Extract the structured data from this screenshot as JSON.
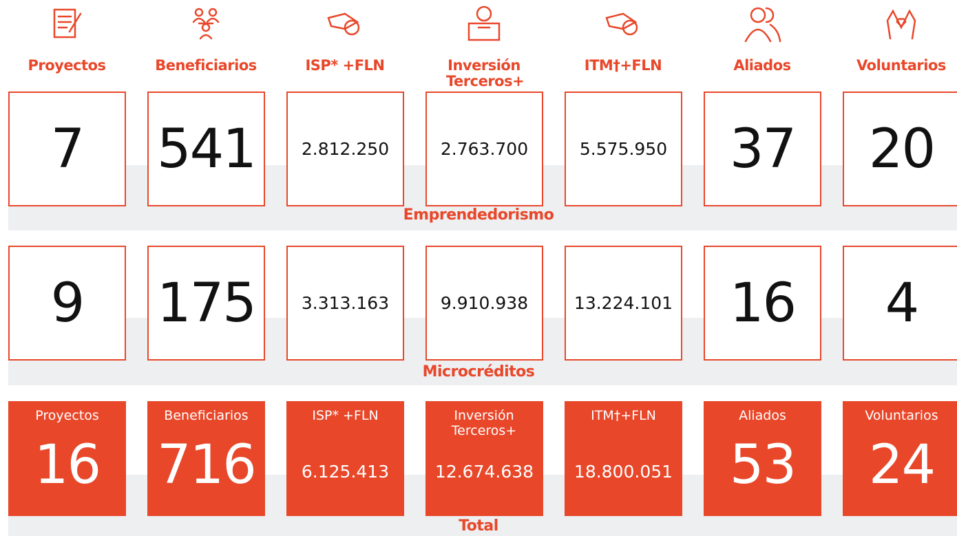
{
  "columns": [
    {
      "label": "Proyectos"
    },
    {
      "label": "Beneficiarios"
    },
    {
      "label": "ISP* +FLN"
    },
    {
      "label": "Inversión Terceros+"
    },
    {
      "label": "ITM†+FLN"
    },
    {
      "label": "Aliados"
    },
    {
      "label": "Voluntarios"
    }
  ],
  "sections": [
    {
      "name": "Emprendedorismo",
      "values": [
        "7",
        "541",
        "2.812.250",
        "2.763.700",
        "5.575.950",
        "37",
        "20"
      ]
    },
    {
      "name": "Microcréditos",
      "values": [
        "9",
        "175",
        "3.313.163",
        "9.910.938",
        "13.224.101",
        "16",
        "4"
      ]
    }
  ],
  "total": {
    "name": "Total",
    "values": [
      "16",
      "716",
      "6.125.413",
      "12.674.638",
      "18.800.051",
      "53",
      "24"
    ]
  }
}
